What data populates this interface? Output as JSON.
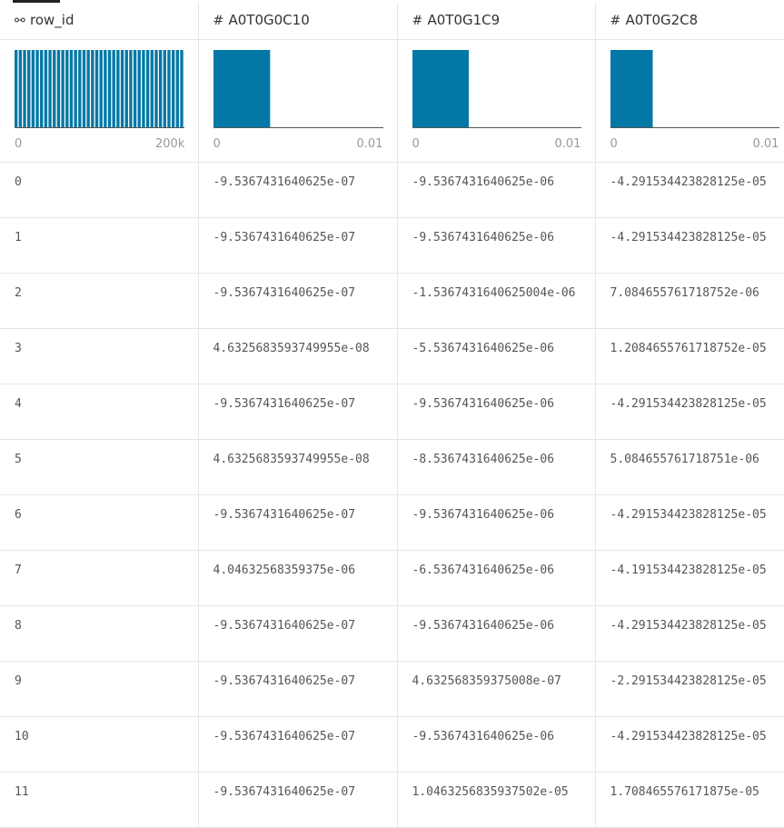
{
  "colors": {
    "bar": "#0378a6",
    "axis": "#555555",
    "tick_text": "#999999",
    "grid": "#e6e6e6"
  },
  "columns": [
    {
      "name": "row_id",
      "icon": "key-icon",
      "icon_glyph": "⚯",
      "hist_min": "0",
      "hist_max": "200k",
      "bar_count": 40,
      "bar_fill": 1.0
    },
    {
      "name": "A0T0G0C10",
      "icon": "hash-icon",
      "icon_glyph": "#",
      "hist_min": "0",
      "hist_max": "0.01",
      "bar_count": 1,
      "bar_fill": 1.0
    },
    {
      "name": "A0T0G1C9",
      "icon": "hash-icon",
      "icon_glyph": "#",
      "hist_min": "0",
      "hist_max": "0.01",
      "bar_count": 1,
      "bar_fill": 1.0
    },
    {
      "name": "A0T0G2C8",
      "icon": "hash-icon",
      "icon_glyph": "#",
      "hist_min": "0",
      "hist_max": "0.01",
      "bar_count": 1,
      "bar_fill": 1.0
    }
  ],
  "rows": [
    [
      "0",
      "-9.5367431640625e-07",
      "-9.5367431640625e-06",
      "-4.291534423828125e-05"
    ],
    [
      "1",
      "-9.5367431640625e-07",
      "-9.5367431640625e-06",
      "-4.291534423828125e-05"
    ],
    [
      "2",
      "-9.5367431640625e-07",
      "-1.5367431640625004e-06",
      "7.084655761718752e-06"
    ],
    [
      "3",
      "4.6325683593749955e-08",
      "-5.5367431640625e-06",
      "1.2084655761718752e-05"
    ],
    [
      "4",
      "-9.5367431640625e-07",
      "-9.5367431640625e-06",
      "-4.291534423828125e-05"
    ],
    [
      "5",
      "4.6325683593749955e-08",
      "-8.5367431640625e-06",
      "5.084655761718751e-06"
    ],
    [
      "6",
      "-9.5367431640625e-07",
      "-9.5367431640625e-06",
      "-4.291534423828125e-05"
    ],
    [
      "7",
      "4.04632568359375e-06",
      "-6.5367431640625e-06",
      "-4.191534423828125e-05"
    ],
    [
      "8",
      "-9.5367431640625e-07",
      "-9.5367431640625e-06",
      "-4.291534423828125e-05"
    ],
    [
      "9",
      "-9.5367431640625e-07",
      "4.632568359375008e-07",
      "-2.291534423828125e-05"
    ],
    [
      "10",
      "-9.5367431640625e-07",
      "-9.5367431640625e-06",
      "-4.291534423828125e-05"
    ],
    [
      "11",
      "-9.5367431640625e-07",
      "1.0463256835937502e-05",
      "1.708465576171875e-05"
    ]
  ]
}
